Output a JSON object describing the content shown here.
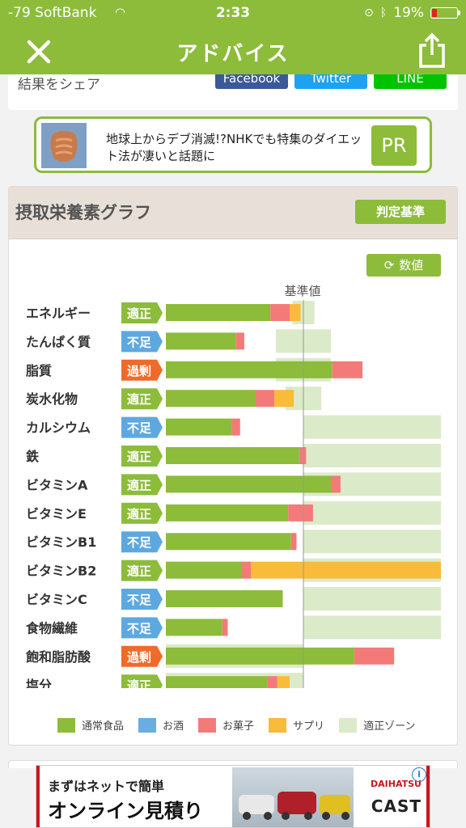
{
  "status_bar": {
    "carrier": "-79 SoftBank",
    "time": "2:33",
    "battery": "19%"
  },
  "nav": {
    "title": "アドバイス"
  },
  "share": {
    "label": "結果をシェア",
    "buttons": [
      {
        "label": "Facebook",
        "color": "#3b5998"
      },
      {
        "label": "Twitter",
        "color": "#1da1f2"
      },
      {
        "label": "LINE",
        "color": "#00c300"
      }
    ]
  },
  "pr_ad": {
    "text": "地球上からデブ消滅!?NHKでも特集のダイエット法が凄いと話題に",
    "badge": "PR"
  },
  "graph": {
    "title": "摂取栄養素グラフ",
    "criteria_button": "判定基準",
    "values_button": "数値",
    "baseline_label": "基準値"
  },
  "colors": {
    "accent": "#8cbc3a",
    "food": "#8cbc3a",
    "alcohol": "#6aade0",
    "snack": "#f47a7a",
    "supplement": "#f8bb3a",
    "zone": "#dbeac8",
    "status_ok": "#8cbc3a",
    "status_low": "#5ea8e0",
    "status_high": "#f06a2a"
  },
  "chart_data": {
    "type": "bar",
    "categories": [
      "エネルギー",
      "たんぱく質",
      "脂質",
      "炭水化物",
      "カルシウム",
      "鉄",
      "ビタミンA",
      "ビタミンE",
      "ビタミンB1",
      "ビタミンB2",
      "ビタミンC",
      "食物繊維",
      "飽和脂肪酸",
      "塩分"
    ],
    "status": [
      "適正",
      "不足",
      "過剰",
      "適正",
      "不足",
      "適正",
      "適正",
      "適正",
      "不足",
      "適正",
      "不足",
      "不足",
      "過剰",
      "適正"
    ],
    "status_type": [
      "ok",
      "low",
      "high",
      "ok",
      "low",
      "ok",
      "ok",
      "ok",
      "low",
      "ok",
      "low",
      "low",
      "high",
      "ok"
    ],
    "series": [
      {
        "name": "通常食品",
        "values": [
          76,
          51,
          121,
          65,
          48,
          97,
          120,
          89,
          91,
          55,
          85,
          41,
          137,
          74
        ]
      },
      {
        "name": "お酒",
        "values": [
          0,
          0,
          0,
          0,
          0,
          0,
          0,
          0,
          0,
          0,
          0,
          0,
          0,
          0
        ]
      },
      {
        "name": "お菓子",
        "values": [
          14,
          6,
          22,
          14,
          6,
          5,
          7,
          18,
          4,
          7,
          0,
          4,
          29,
          7
        ]
      },
      {
        "name": "サプリ",
        "values": [
          8,
          0,
          0,
          14,
          0,
          0,
          0,
          0,
          0,
          138,
          0,
          0,
          0,
          9
        ]
      }
    ],
    "zone": [
      [
        92,
        108
      ],
      [
        80,
        120
      ],
      [
        80,
        120
      ],
      [
        87,
        113
      ],
      [
        100,
        200
      ],
      [
        100,
        200
      ],
      [
        100,
        200
      ],
      [
        100,
        200
      ],
      [
        100,
        200
      ],
      [
        100,
        200
      ],
      [
        100,
        200
      ],
      [
        100,
        200
      ],
      [
        0,
        100
      ],
      [
        0,
        100
      ]
    ],
    "baseline": 100,
    "xlim": [
      0,
      200
    ],
    "legend": [
      "通常食品",
      "お酒",
      "お菓子",
      "サプリ",
      "適正ゾーン"
    ]
  }
}
